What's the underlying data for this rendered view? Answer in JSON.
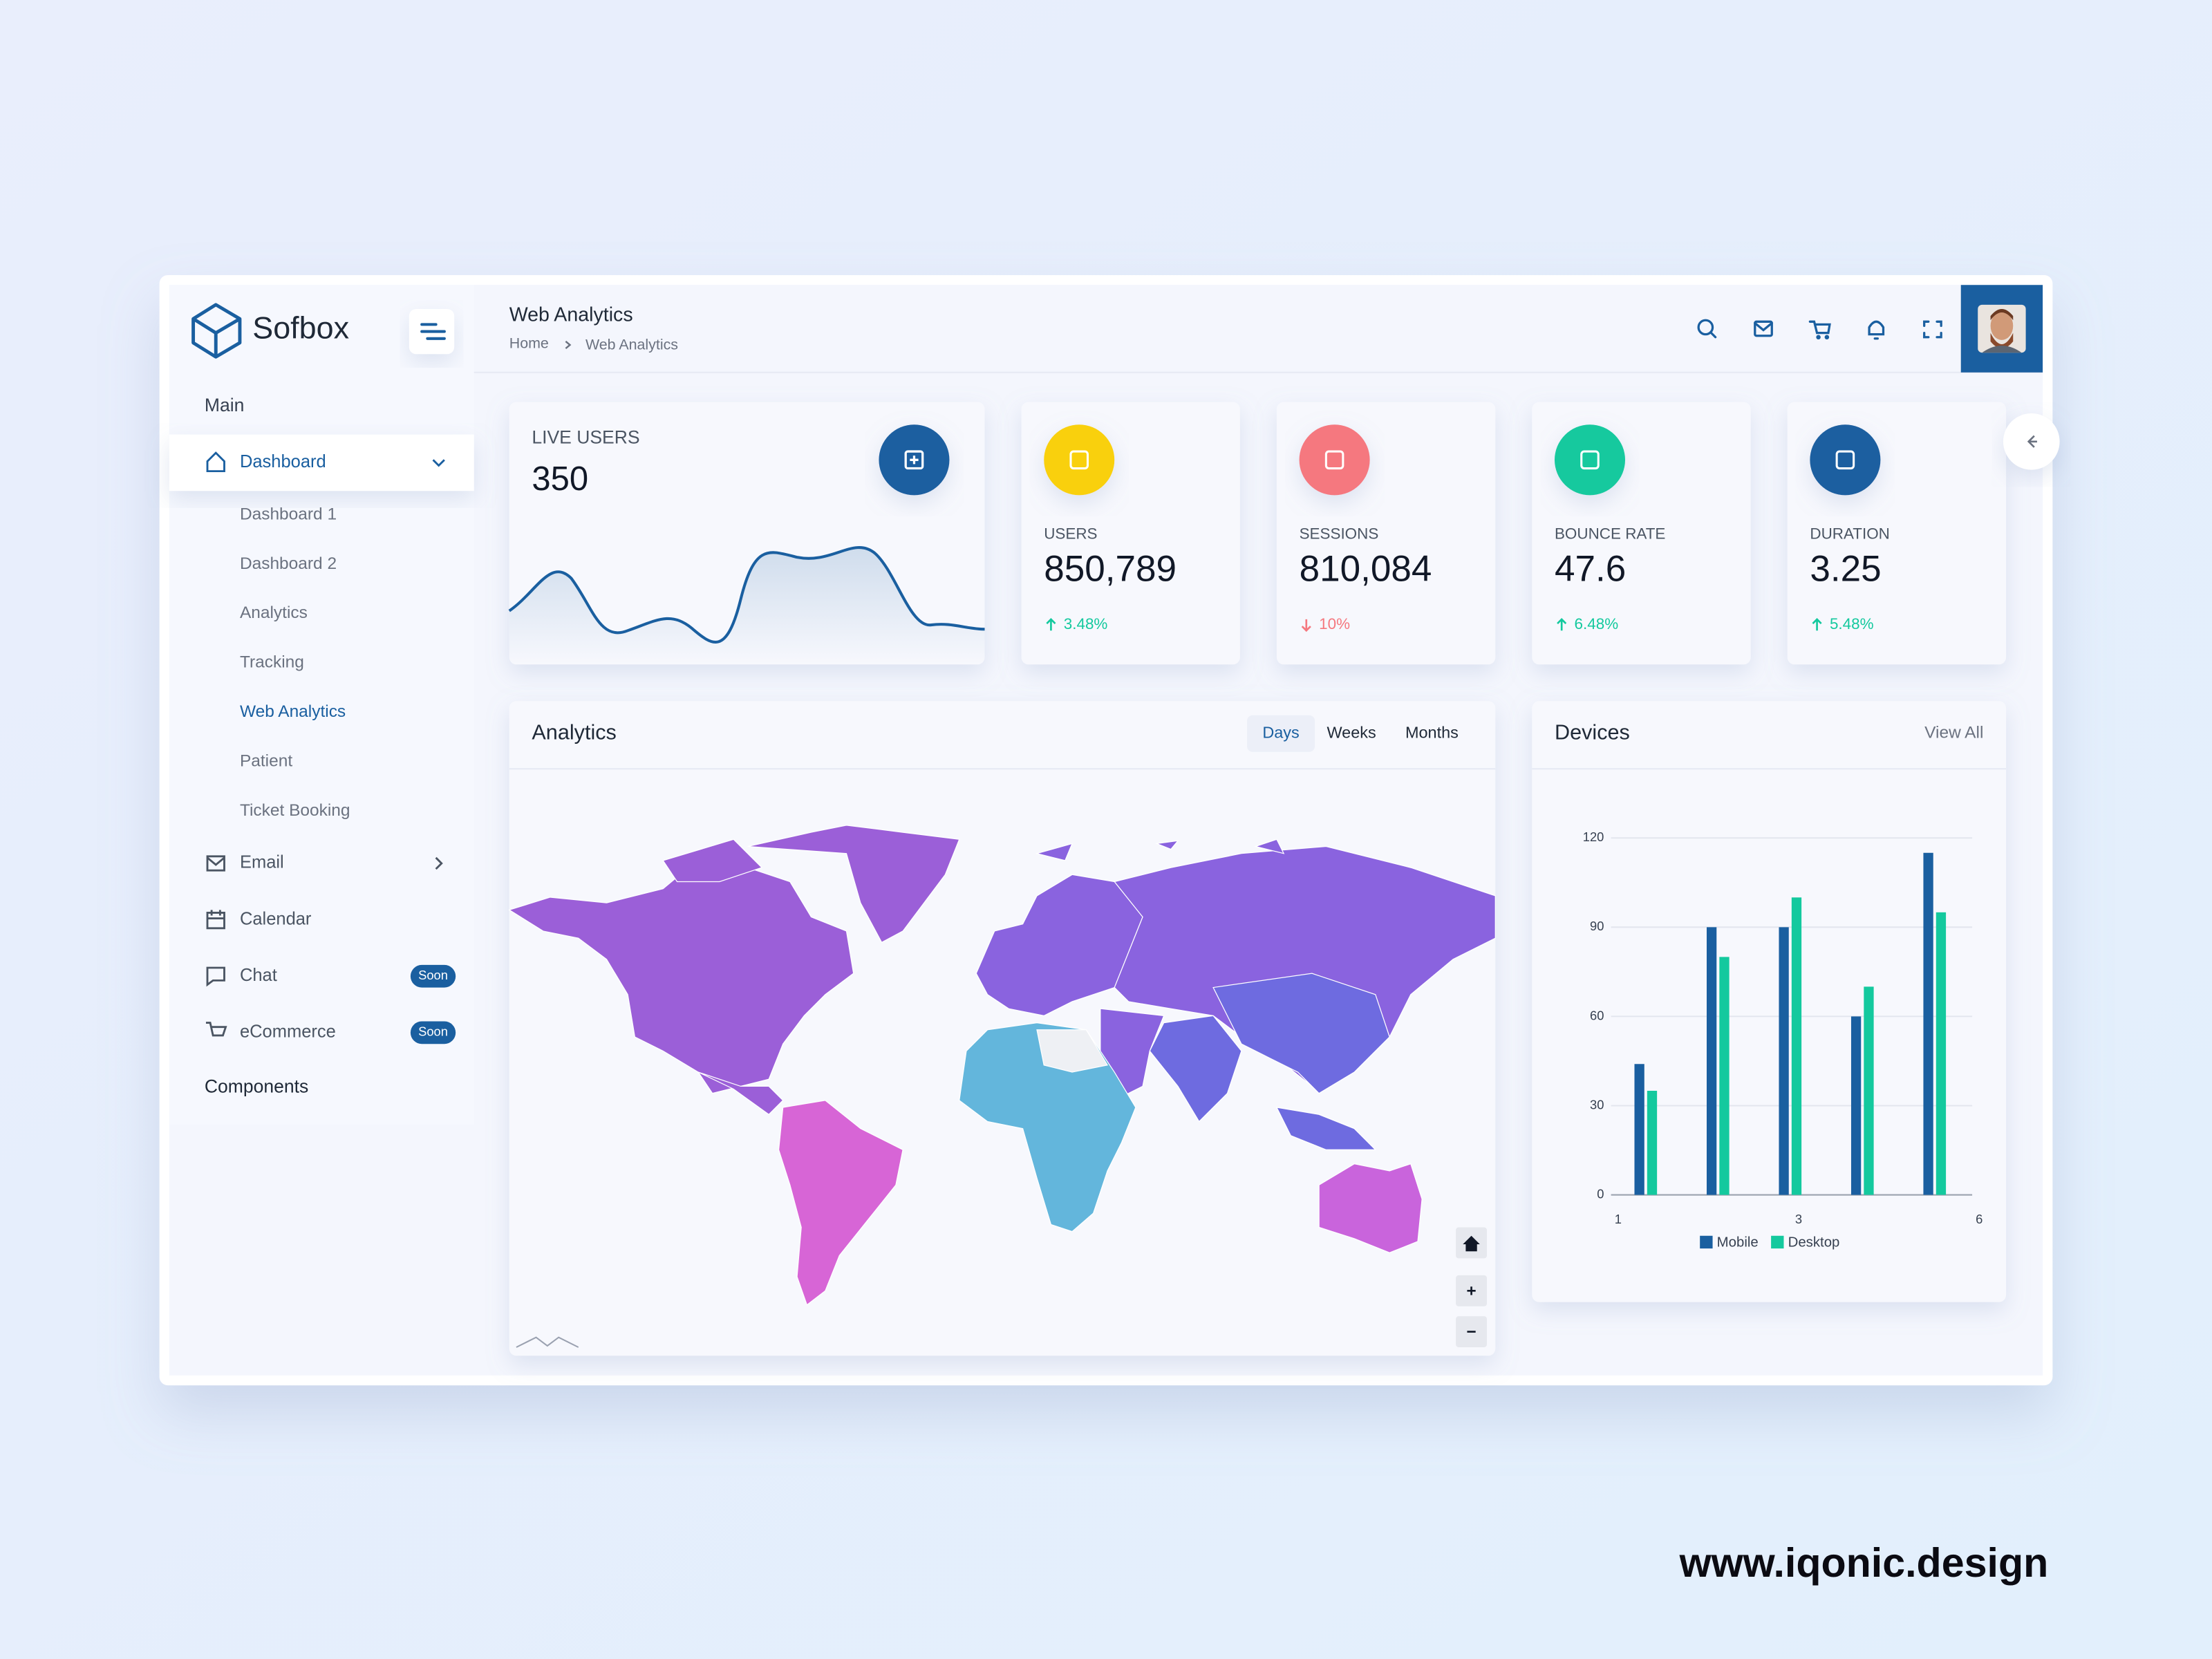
{
  "brand": "Sofbox",
  "header": {
    "title": "Web Analytics",
    "breadcrumb": [
      "Home",
      "Web Analytics"
    ]
  },
  "sidebar": {
    "section_main": "Main",
    "items": [
      {
        "label": "Dashboard",
        "active": true,
        "children": [
          "Dashboard 1",
          "Dashboard 2",
          "Analytics",
          "Tracking",
          "Web Analytics",
          "Patient",
          "Ticket Booking"
        ],
        "current_child": 4
      },
      {
        "label": "Email",
        "arrow": true
      },
      {
        "label": "Calendar"
      },
      {
        "label": "Chat",
        "badge": "Soon"
      },
      {
        "label": "eCommerce",
        "badge": "Soon"
      }
    ],
    "section_components": "Components"
  },
  "live_users": {
    "label": "LIVE USERS",
    "value": 350
  },
  "stats": [
    {
      "label": "USERS",
      "value": "850,789",
      "change": "3.48%",
      "trend": "up",
      "color": "#f9d00c"
    },
    {
      "label": "SESSIONS",
      "value": "810,084",
      "change": "10%",
      "trend": "down",
      "color": "#f5787f"
    },
    {
      "label": "BOUNCE RATE",
      "value": 47.6,
      "change": "6.48%",
      "trend": "up",
      "color": "#14c99e"
    },
    {
      "label": "DURATION",
      "value": 3.25,
      "change": "5.48%",
      "trend": "up",
      "color": "#1a5fa0"
    }
  ],
  "analytics": {
    "title": "Analytics",
    "tabs": [
      "Days",
      "Weeks",
      "Months"
    ],
    "active_tab": 0
  },
  "devices": {
    "title": "Devices",
    "link": "View All",
    "chart_data": {
      "type": "bar",
      "categories": [
        null,
        null,
        null,
        null,
        null
      ],
      "xticks": [
        1,
        3,
        6
      ],
      "series": [
        {
          "name": "Mobile",
          "color": "#1a5fa0",
          "values": [
            44,
            90,
            90,
            60,
            115
          ]
        },
        {
          "name": "Desktop",
          "color": "#14c99e",
          "values": [
            35,
            80,
            100,
            70,
            95
          ]
        }
      ],
      "ylim": [
        0,
        120
      ],
      "yticks": [
        0,
        30,
        60,
        90,
        120
      ],
      "grid": true
    }
  },
  "watermark": "www.iqonic.design"
}
